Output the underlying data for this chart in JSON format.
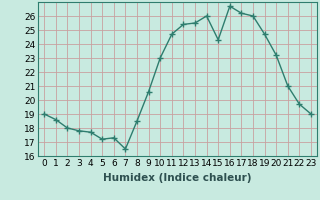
{
  "x": [
    0,
    1,
    2,
    3,
    4,
    5,
    6,
    7,
    8,
    9,
    10,
    11,
    12,
    13,
    14,
    15,
    16,
    17,
    18,
    19,
    20,
    21,
    22,
    23
  ],
  "y": [
    19.0,
    18.6,
    18.0,
    17.8,
    17.7,
    17.2,
    17.3,
    16.5,
    18.5,
    20.6,
    23.0,
    24.7,
    25.4,
    25.5,
    26.0,
    24.3,
    26.7,
    26.2,
    26.0,
    24.7,
    23.2,
    21.0,
    19.7,
    19.0
  ],
  "line_color": "#2e7d6e",
  "marker": "+",
  "marker_size": 4,
  "linewidth": 1.0,
  "bg_color": "#c8eae0",
  "xlabel": "Humidex (Indice chaleur)",
  "ylabel": "",
  "ylim": [
    16,
    27
  ],
  "xlim": [
    -0.5,
    23.5
  ],
  "yticks": [
    16,
    17,
    18,
    19,
    20,
    21,
    22,
    23,
    24,
    25,
    26
  ],
  "xticks": [
    0,
    1,
    2,
    3,
    4,
    5,
    6,
    7,
    8,
    9,
    10,
    11,
    12,
    13,
    14,
    15,
    16,
    17,
    18,
    19,
    20,
    21,
    22,
    23
  ],
  "xtick_labels": [
    "0",
    "1",
    "2",
    "3",
    "4",
    "5",
    "6",
    "7",
    "8",
    "9",
    "10",
    "11",
    "12",
    "13",
    "14",
    "15",
    "16",
    "17",
    "18",
    "19",
    "20",
    "21",
    "22",
    "23"
  ],
  "xlabel_fontsize": 7.5,
  "tick_fontsize": 6.5,
  "grid_color": "#c8a0a0",
  "spine_color": "#2e7d6e"
}
